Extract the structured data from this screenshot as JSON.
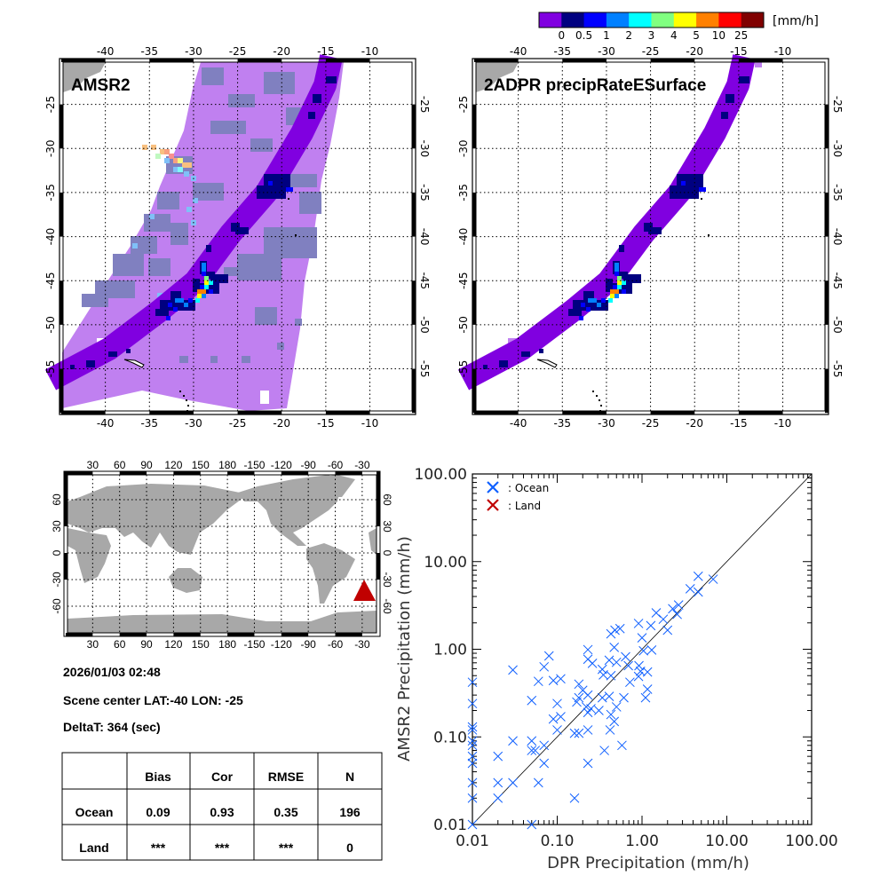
{
  "colorbar": {
    "colors": [
      "#8000e0",
      "#000080",
      "#0000ff",
      "#0080ff",
      "#00ffff",
      "#80ff80",
      "#ffff00",
      "#ff8000",
      "#ff0000",
      "#800000"
    ],
    "labels": [
      "0",
      "0.5",
      "1",
      "2",
      "3",
      "4",
      "5",
      "10",
      "25"
    ],
    "unit": "[mm/h]"
  },
  "maps": {
    "lon_labels": [
      "-40",
      "-35",
      "-30",
      "-25",
      "-20",
      "-15",
      "-10"
    ],
    "lat_labels": [
      "-25",
      "-30",
      "-35",
      "-40",
      "-45",
      "-50",
      "-55"
    ],
    "amsr2_title": "AMSR2",
    "dpr_title": "2ADPR precipRateESurface"
  },
  "world_map": {
    "lon_labels": [
      "30",
      "60",
      "90",
      "120",
      "150",
      "180",
      "-150",
      "-120",
      "-90",
      "-60",
      "-30"
    ],
    "lat_labels": [
      "60",
      "30",
      "0",
      "-30",
      "-60"
    ],
    "marker_color": "#c00000"
  },
  "info": {
    "datetime": "2026/01/03 02:48",
    "scene_center": "Scene center LAT:-40   LON: -25",
    "delta_t": "DeltaT:  364 (sec)"
  },
  "stats_table": {
    "headers": [
      "",
      "Bias",
      "Cor",
      "RMSE",
      "N"
    ],
    "rows": [
      [
        "Ocean",
        "0.09",
        "0.93",
        "0.35",
        "196"
      ],
      [
        "Land",
        "***",
        "***",
        "***",
        "0"
      ]
    ]
  },
  "chart_data": {
    "type": "scatter",
    "xlabel": "DPR Precipitation (mm/h)",
    "ylabel": "AMSR2 Precipitation (mm/h)",
    "xscale": "log",
    "yscale": "log",
    "xlim": [
      0.01,
      100
    ],
    "ylim": [
      0.01,
      100
    ],
    "xticks": [
      "0.01",
      "0.10",
      "1.00",
      "10.00",
      "100.00"
    ],
    "yticks": [
      "0.01",
      "0.10",
      "1.00",
      "10.00",
      "100.00"
    ],
    "reference_line": "1:1",
    "legend": {
      "placement": "top-left",
      "entries": [
        {
          "label": ": Ocean",
          "color": "#1060ff"
        },
        {
          "label": ": Land",
          "color": "#c00000"
        }
      ]
    },
    "series": [
      {
        "name": "Ocean",
        "color": "#1060ff",
        "points": [
          [
            4.6,
            6.8
          ],
          [
            6.9,
            6.3
          ],
          [
            3.7,
            4.9
          ],
          [
            4.6,
            4.5
          ],
          [
            1.47,
            2.6
          ],
          [
            1.78,
            2.2
          ],
          [
            2.3,
            2.9
          ],
          [
            2.7,
            3.2
          ],
          [
            2.6,
            2.5
          ],
          [
            2.0,
            1.65
          ],
          [
            0.91,
            1.97
          ],
          [
            1.27,
            1.86
          ],
          [
            1.0,
            1.35
          ],
          [
            1.3,
            0.98
          ],
          [
            1.04,
            0.96
          ],
          [
            0.55,
            1.72
          ],
          [
            0.48,
            1.65
          ],
          [
            0.43,
            1.5
          ],
          [
            0.47,
            1.05
          ],
          [
            0.23,
            0.99
          ],
          [
            0.23,
            0.77
          ],
          [
            0.26,
            0.69
          ],
          [
            0.41,
            0.75
          ],
          [
            0.5,
            0.71
          ],
          [
            0.64,
            0.82
          ],
          [
            0.69,
            0.65
          ],
          [
            0.34,
            0.59
          ],
          [
            0.35,
            0.51
          ],
          [
            0.43,
            0.5
          ],
          [
            0.92,
            0.65
          ],
          [
            0.96,
            0.56
          ],
          [
            0.91,
            0.49
          ],
          [
            1.16,
            0.55
          ],
          [
            0.72,
            0.42
          ],
          [
            1.16,
            0.35
          ],
          [
            1.1,
            0.28
          ],
          [
            0.61,
            0.28
          ],
          [
            0.5,
            0.22
          ],
          [
            0.41,
            0.29
          ],
          [
            0.34,
            0.28
          ],
          [
            0.31,
            0.2
          ],
          [
            0.43,
            0.18
          ],
          [
            0.47,
            0.15
          ],
          [
            0.42,
            0.12
          ],
          [
            0.58,
            0.08
          ],
          [
            0.36,
            0.07
          ],
          [
            0.23,
            0.12
          ],
          [
            0.23,
            0.05
          ],
          [
            0.16,
            0.02
          ],
          [
            0.16,
            0.11
          ],
          [
            0.18,
            0.11
          ],
          [
            0.17,
            0.25
          ],
          [
            0.18,
            0.4
          ],
          [
            0.2,
            0.34
          ],
          [
            0.18,
            0.28
          ],
          [
            0.22,
            0.22
          ],
          [
            0.23,
            0.3
          ],
          [
            0.23,
            0.19
          ],
          [
            0.25,
            0.21
          ],
          [
            0.1,
            0.24
          ],
          [
            0.1,
            0.12
          ],
          [
            0.11,
            0.17
          ],
          [
            0.09,
            0.16
          ],
          [
            0.09,
            0.44
          ],
          [
            0.11,
            0.46
          ],
          [
            0.08,
            0.84
          ],
          [
            0.07,
            0.63
          ],
          [
            0.06,
            0.43
          ],
          [
            0.05,
            0.26
          ],
          [
            0.03,
            0.58
          ],
          [
            0.03,
            0.09
          ],
          [
            0.05,
            0.09
          ],
          [
            0.05,
            0.07
          ],
          [
            0.055,
            0.07
          ],
          [
            0.07,
            0.08
          ],
          [
            0.07,
            0.05
          ],
          [
            0.06,
            0.03
          ],
          [
            0.03,
            0.03
          ],
          [
            0.02,
            0.03
          ],
          [
            0.02,
            0.06
          ],
          [
            0.02,
            0.02
          ],
          [
            0.05,
            0.01
          ],
          [
            0.01,
            0.42
          ],
          [
            0.01,
            0.24
          ],
          [
            0.01,
            0.13
          ],
          [
            0.01,
            0.12
          ],
          [
            0.01,
            0.09
          ],
          [
            0.01,
            0.08
          ],
          [
            0.01,
            0.06
          ],
          [
            0.01,
            0.05
          ],
          [
            0.01,
            0.03
          ],
          [
            0.01,
            0.02
          ],
          [
            0.01,
            0.01
          ]
        ]
      },
      {
        "name": "Land",
        "color": "#c00000",
        "points": []
      }
    ]
  }
}
